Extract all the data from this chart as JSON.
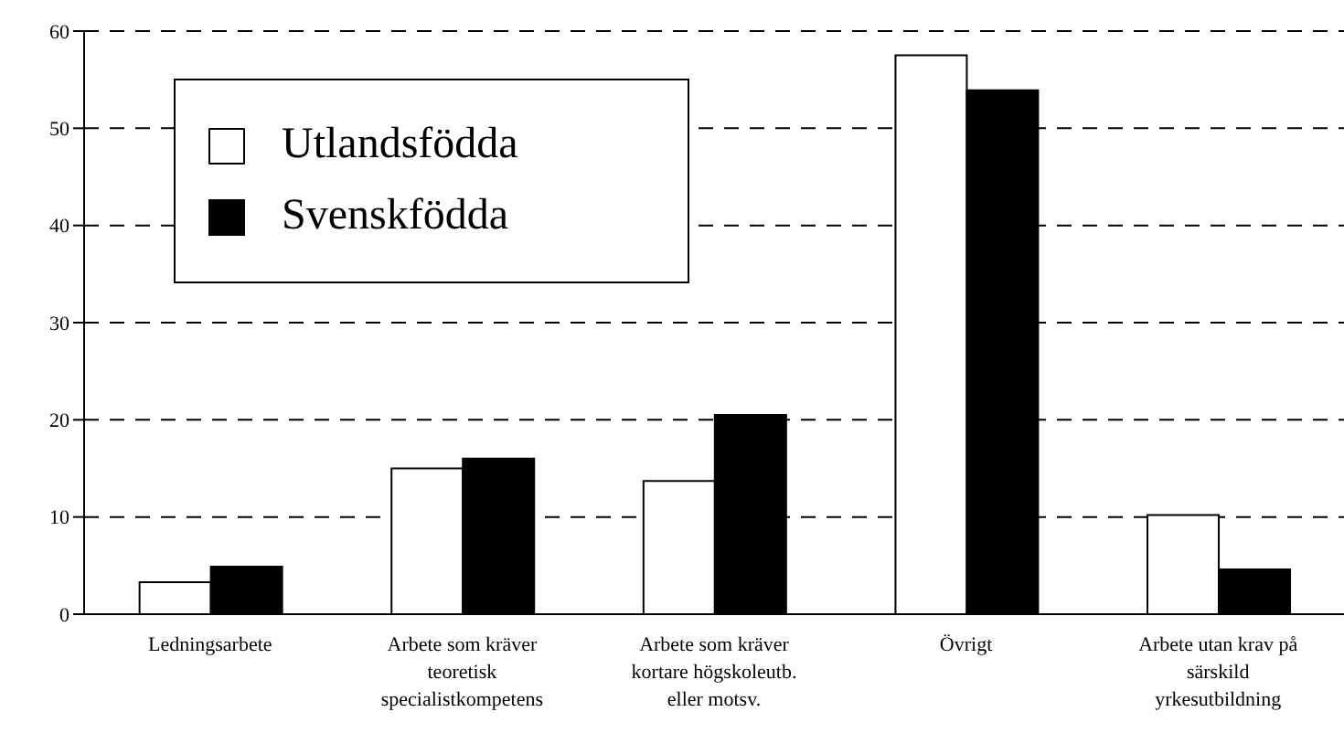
{
  "chart_data": {
    "type": "bar",
    "categories": [
      "Ledningsarbete",
      "Arbete som kräver teoretisk specialistkompetens",
      "Arbete som kräver kortare högskoleutb. eller motsv.",
      "Övrigt",
      "Arbete utan krav på särskild yrkesutbildning"
    ],
    "series": [
      {
        "name": "Utlandsfödda",
        "color": "#ffffff",
        "values": [
          3.3,
          15.0,
          13.7,
          57.5,
          10.2
        ]
      },
      {
        "name": "Svenskfödda",
        "color": "#000000",
        "values": [
          4.9,
          16.0,
          20.5,
          53.9,
          4.6
        ]
      }
    ],
    "ylim": [
      0,
      60
    ],
    "yticks": [
      0,
      10,
      20,
      30,
      40,
      50,
      60
    ],
    "grid": "y",
    "legend": "top left"
  }
}
